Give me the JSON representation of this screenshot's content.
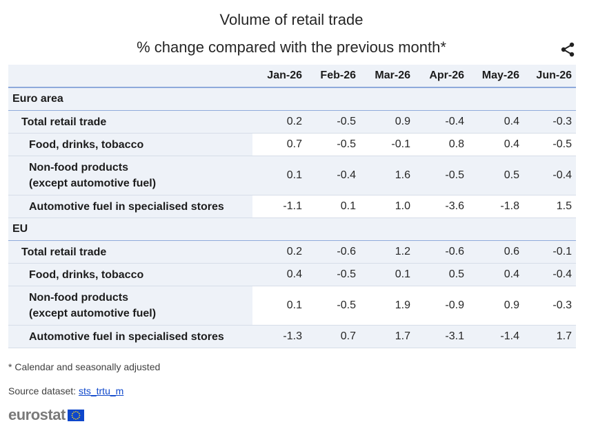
{
  "title": "Volume of retail trade",
  "subtitle": "% change compared with the previous month*",
  "table": {
    "columns": [
      "Jan-26",
      "Feb-26",
      "Mar-26",
      "Apr-26",
      "May-26",
      "Jun-26"
    ],
    "groups": [
      {
        "name": "Euro area",
        "rows": [
          {
            "label": "Total retail trade",
            "values": [
              "0.2",
              "-0.5",
              "0.9",
              "-0.4",
              "0.4",
              "-0.3"
            ]
          },
          {
            "label": "Food, drinks, tobacco",
            "values": [
              "0.7",
              "-0.5",
              "-0.1",
              "0.8",
              "0.4",
              "-0.5"
            ]
          },
          {
            "label_line1": "Non-food products",
            "label_line2": "(except automotive fuel)",
            "values": [
              "0.1",
              "-0.4",
              "1.6",
              "-0.5",
              "0.5",
              "-0.4"
            ]
          },
          {
            "label": "Automotive fuel in specialised stores",
            "values": [
              "-1.1",
              "0.1",
              "1.0",
              "-3.6",
              "-1.8",
              "1.5"
            ]
          }
        ]
      },
      {
        "name": "EU",
        "rows": [
          {
            "label": "Total retail trade",
            "values": [
              "0.2",
              "-0.6",
              "1.2",
              "-0.6",
              "0.6",
              "-0.1"
            ]
          },
          {
            "label": "Food, drinks, tobacco",
            "values": [
              "0.4",
              "-0.5",
              "0.1",
              "0.5",
              "0.4",
              "-0.4"
            ]
          },
          {
            "label_line1": "Non-food products",
            "label_line2": "(except automotive fuel)",
            "values": [
              "0.1",
              "-0.5",
              "1.9",
              "-0.9",
              "0.9",
              "-0.3"
            ]
          },
          {
            "label": "Automotive fuel in specialised stores",
            "values": [
              "-1.3",
              "0.7",
              "1.7",
              "-3.1",
              "-1.4",
              "1.7"
            ]
          }
        ]
      }
    ]
  },
  "footnote": "* Calendar and seasonally adjusted",
  "source": {
    "prefix": "Source dataset:",
    "link": "sts_trtu_m"
  },
  "logo_text": "eurostat",
  "icons": {
    "share": "share-icon",
    "flag": "eu-flag-icon"
  },
  "colors": {
    "header_bg": "#eef2f8",
    "rule": "#8eaadb",
    "link": "#0e47cb",
    "flag": "#0e47cb"
  }
}
